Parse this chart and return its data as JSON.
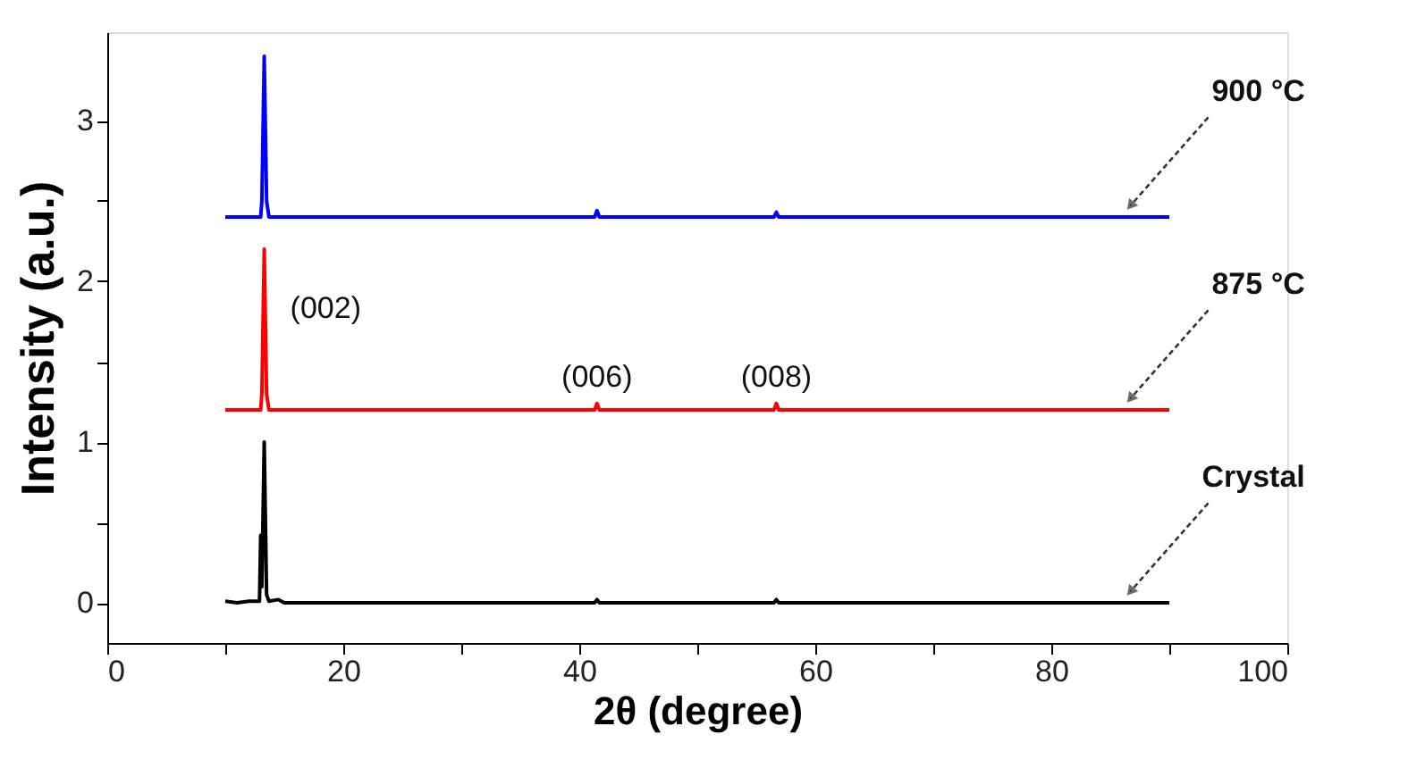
{
  "chart_data": {
    "type": "line",
    "xlabel": "2θ (degree)",
    "ylabel": "Intensity (a.u.)",
    "xlim": [
      0,
      100
    ],
    "ylim": [
      -0.25,
      3.55
    ],
    "xticks": [
      0,
      {
        "value": 10,
        "label": null
      },
      20,
      {
        "value": 30,
        "label": null
      },
      40,
      {
        "value": 50,
        "label": null
      },
      60,
      {
        "value": 70,
        "label": null
      },
      80,
      {
        "value": 90,
        "label": null
      },
      100
    ],
    "yticks": [
      0,
      {
        "value": 0.5,
        "label": null
      },
      1,
      {
        "value": 1.5,
        "label": null
      },
      2,
      {
        "value": 2.5,
        "label": null
      },
      3
    ],
    "grid": false,
    "marker": "none",
    "line_style": "solid",
    "series": [
      {
        "name": "Crystal",
        "color": "#000000",
        "x": [
          10,
          11,
          12,
          12.9,
          13.0,
          13.1,
          13.3,
          13.5,
          13.7,
          14.5,
          15,
          41.3,
          41.5,
          41.7,
          56.5,
          56.7,
          56.9,
          90
        ],
        "values": [
          0.01,
          0.0,
          0.01,
          0.01,
          0.42,
          0.1,
          1.0,
          0.05,
          0.01,
          0.02,
          0.0,
          0.0,
          0.02,
          0.0,
          0.0,
          0.02,
          0.0,
          0.0
        ]
      },
      {
        "name": "875 °C",
        "color": "#ff0000",
        "x": [
          10,
          13.0,
          13.1,
          13.3,
          13.5,
          13.7,
          41.3,
          41.5,
          41.7,
          56.5,
          56.7,
          56.9,
          90
        ],
        "values": [
          1.2,
          1.2,
          1.3,
          2.2,
          1.3,
          1.2,
          1.2,
          1.24,
          1.2,
          1.2,
          1.24,
          1.2,
          1.2
        ]
      },
      {
        "name": "900 °C",
        "color": "#0000ff",
        "x": [
          10,
          13.0,
          13.1,
          13.3,
          13.5,
          13.7,
          41.3,
          41.5,
          41.7,
          56.5,
          56.7,
          56.9,
          90
        ],
        "values": [
          2.4,
          2.4,
          2.5,
          3.4,
          2.5,
          2.4,
          2.4,
          2.44,
          2.4,
          2.4,
          2.43,
          2.4,
          2.4
        ]
      }
    ],
    "annotations": [
      "(002)",
      "(006)",
      "(008)"
    ]
  }
}
